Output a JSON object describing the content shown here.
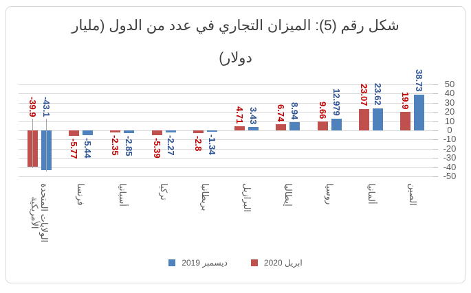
{
  "title": {
    "line1": "شكل رقم (5): الميزان التجاري في عدد من الدول (مليار",
    "line2": "دولار)",
    "full": "شكل رقم (5): الميزان التجاري في عدد من الدول (مليار دولار)"
  },
  "legend": {
    "items": [
      {
        "label": "ديسمبر 2019",
        "color": "#4F81BD"
      },
      {
        "label": "ابريل 2020",
        "color": "#C0504D"
      }
    ]
  },
  "colors": {
    "frame_border": "#D8D8D8",
    "gridline": "#D9D9D9",
    "tick": "#BFBFBF",
    "leader_line": "#A6A6A6",
    "axis_text": "#595959",
    "title_text": "#3F3F3F",
    "series_april_bar": "#C0504D",
    "series_april_label": "#C00000",
    "series_december_bar": "#4F81BD",
    "series_december_label": "#2E5395"
  },
  "chart_data": {
    "type": "bar",
    "title": "شكل رقم (5): الميزان التجاري في عدد من الدول (مليار دولار)",
    "rtl": true,
    "grid": true,
    "legend_position": "bottom",
    "value_labels_rotated": true,
    "categories": [
      "الولايات المتحدة\nالأمريكية",
      "فرنسا",
      "أسبانيا",
      "تركيا",
      "بريطانيا",
      "البرازيل",
      "إيطاليا",
      "روسيا",
      "ألمانيا",
      "الصين"
    ],
    "series": [
      {
        "name": "ابريل 2020",
        "color": "#C0504D",
        "label_color": "#C00000",
        "values": [
          -39.9,
          -5.77,
          -2.35,
          -5.39,
          -2.8,
          4.71,
          6.74,
          9.66,
          23.07,
          19.9
        ],
        "labels": [
          "-39.9",
          "-5.77",
          "-2.35",
          "-5.39",
          "-2.8",
          "4.71",
          "6.74",
          "9.66",
          "23.07",
          "19.9"
        ]
      },
      {
        "name": "ديسمبر 2019",
        "color": "#4F81BD",
        "label_color": "#2E5395",
        "values": [
          -43.1,
          -5.44,
          -2.85,
          -2.27,
          -1.34,
          3.43,
          8.94,
          12.979,
          23.62,
          38.73
        ],
        "labels": [
          "-43.1",
          "-5.44",
          "-2.85",
          "-2.27",
          "-1.34",
          "3.43",
          "8.94",
          "12.979",
          "23.62",
          "38.73"
        ]
      }
    ],
    "xlabel": "",
    "ylabel": "",
    "ylim": [
      -50,
      50
    ],
    "ytick_step": 10,
    "yticks": [
      "50",
      "40",
      "30",
      "20",
      "10",
      "0",
      "-10",
      "-20",
      "-30",
      "-40",
      "-50"
    ]
  }
}
